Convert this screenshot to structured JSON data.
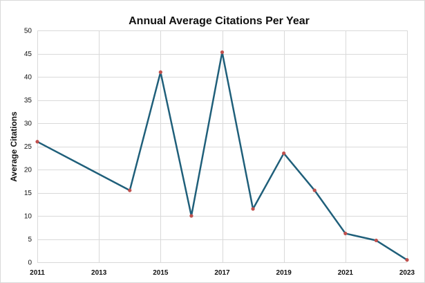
{
  "chart_data": {
    "type": "line",
    "title": "Annual Average Citations Per Year",
    "xlabel": "",
    "ylabel": "Average Citations",
    "xlim": [
      2011,
      2023
    ],
    "ylim": [
      0,
      50
    ],
    "x_ticks": [
      2011,
      2013,
      2015,
      2017,
      2019,
      2021,
      2023
    ],
    "y_ticks": [
      0,
      5,
      10,
      15,
      20,
      25,
      30,
      35,
      40,
      45,
      50
    ],
    "grid": true,
    "legend": "none",
    "series": [
      {
        "x": [
          2011,
          2014,
          2015,
          2016,
          2017,
          2018,
          2019,
          2020,
          2021,
          2022,
          2023
        ],
        "y": [
          26,
          15.5,
          41,
          10,
          45.3,
          11.5,
          23.5,
          15.5,
          6.2,
          4.7,
          0.5
        ],
        "line_color": "#1f5f7a",
        "marker_color": "#c0504d"
      }
    ]
  }
}
